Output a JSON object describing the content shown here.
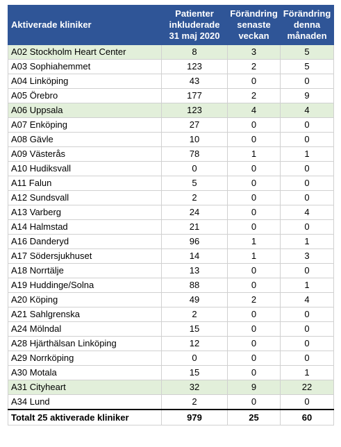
{
  "header": {
    "clinic": "Aktiverade kliniker",
    "patients": "Patienter\ninkluderade\n31 maj 2020",
    "change_week": "Förändring\nsenaste\nveckan",
    "change_month": "Förändring\ndenna\nmånaden"
  },
  "highlight_color": "#e2efda",
  "header_color": "#2f5597",
  "rows": [
    {
      "name": "A02 Stockholm Heart Center",
      "patients": "8",
      "week": "3",
      "month": "5",
      "highlight": true
    },
    {
      "name": "A03 Sophiahemmet",
      "patients": "123",
      "week": "2",
      "month": "5",
      "highlight": false
    },
    {
      "name": "A04 Linköping",
      "patients": "43",
      "week": "0",
      "month": "0",
      "highlight": false
    },
    {
      "name": "A05 Örebro",
      "patients": "177",
      "week": "2",
      "month": "9",
      "highlight": false
    },
    {
      "name": "A06 Uppsala",
      "patients": "123",
      "week": "4",
      "month": "4",
      "highlight": true
    },
    {
      "name": "A07 Enköping",
      "patients": "27",
      "week": "0",
      "month": "0",
      "highlight": false
    },
    {
      "name": "A08 Gävle",
      "patients": "10",
      "week": "0",
      "month": "0",
      "highlight": false
    },
    {
      "name": "A09 Västerås",
      "patients": "78",
      "week": "1",
      "month": "1",
      "highlight": false
    },
    {
      "name": "A10 Hudiksvall",
      "patients": "0",
      "week": "0",
      "month": "0",
      "highlight": false
    },
    {
      "name": "A11 Falun",
      "patients": "5",
      "week": "0",
      "month": "0",
      "highlight": false
    },
    {
      "name": "A12 Sundsvall",
      "patients": "2",
      "week": "0",
      "month": "0",
      "highlight": false
    },
    {
      "name": "A13 Varberg",
      "patients": "24",
      "week": "0",
      "month": "4",
      "highlight": false
    },
    {
      "name": "A14 Halmstad",
      "patients": "21",
      "week": "0",
      "month": "0",
      "highlight": false
    },
    {
      "name": "A16 Danderyd",
      "patients": "96",
      "week": "1",
      "month": "1",
      "highlight": false
    },
    {
      "name": "A17 Södersjukhuset",
      "patients": "14",
      "week": "1",
      "month": "3",
      "highlight": false
    },
    {
      "name": "A18 Norrtälje",
      "patients": "13",
      "week": "0",
      "month": "0",
      "highlight": false
    },
    {
      "name": "A19 Huddinge/Solna",
      "patients": "88",
      "week": "0",
      "month": "1",
      "highlight": false
    },
    {
      "name": "A20 Köping",
      "patients": "49",
      "week": "2",
      "month": "4",
      "highlight": false
    },
    {
      "name": "A21 Sahlgrenska",
      "patients": "2",
      "week": "0",
      "month": "0",
      "highlight": false
    },
    {
      "name": "A24 Mölndal",
      "patients": "15",
      "week": "0",
      "month": "0",
      "highlight": false
    },
    {
      "name": "A28 Hjärthälsan Linköping",
      "patients": "12",
      "week": "0",
      "month": "0",
      "highlight": false
    },
    {
      "name": "A29 Norrköping",
      "patients": "0",
      "week": "0",
      "month": "0",
      "highlight": false
    },
    {
      "name": "A30 Motala",
      "patients": "15",
      "week": "0",
      "month": "1",
      "highlight": false
    },
    {
      "name": "A31 Cityheart",
      "patients": "32",
      "week": "9",
      "month": "22",
      "highlight": true
    },
    {
      "name": "A34 Lund",
      "patients": "2",
      "week": "0",
      "month": "0",
      "highlight": false
    }
  ],
  "total": {
    "name": "Totalt 25 aktiverade kliniker",
    "patients": "979",
    "week": "25",
    "month": "60"
  }
}
